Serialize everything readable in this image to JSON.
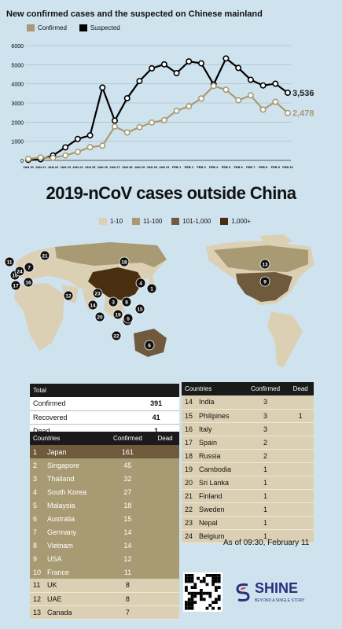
{
  "chart_title": "New confirmed cases and the suspected on Chinese mainland",
  "chart_data": [
    {
      "type": "line",
      "title": "New confirmed cases and the suspected on Chinese mainland",
      "x": [
        "JAN 20",
        "JAN 21",
        "JAN 22",
        "JAN 23",
        "JAN 24",
        "JAN 25",
        "JAN 26",
        "JAN 27",
        "JAN 28",
        "JAN 29",
        "JAN 30",
        "JAN 31",
        "FEB 1",
        "FEB 2",
        "FEB 3",
        "FEB 4",
        "FEB 5",
        "FEB 6",
        "FEB 7",
        "FEB 8",
        "FEB 9",
        "FEB 10"
      ],
      "x_tick_labels": [
        "JAN 20",
        "JAN 21",
        "JAN 22",
        "JAN 23",
        "JAN 24",
        "JAN 25",
        "JAN 26",
        "JAN 27",
        "JAN 28",
        "JAN 29",
        "JAN 30",
        "JAN 31",
        "FEB 1",
        "FEB 2",
        "FEB 3",
        "FEB 4",
        "FEB 5",
        "FEB 6",
        "FEB 7",
        "FEB 8",
        "FEB 9",
        "FEB 10"
      ],
      "x_axis_prefix": "JAN",
      "series": [
        {
          "name": "Confirmed",
          "color": "#a89a72",
          "values": [
            77,
            149,
            131,
            259,
            444,
            688,
            769,
            1771,
            1459,
            1737,
            1982,
            2102,
            2590,
            2829,
            3235,
            3887,
            3694,
            3143,
            3399,
            2656,
            3062,
            2478
          ]
        },
        {
          "name": "Suspected",
          "color": "#000000",
          "values": [
            27,
            60,
            257,
            680,
            1118,
            1309,
            3806,
            2077,
            3248,
            4148,
            4812,
            5019,
            4562,
            5173,
            5072,
            3971,
            5328,
            4833,
            4214,
            3916,
            4008,
            3536
          ]
        }
      ],
      "end_labels": {
        "Confirmed": "2,478",
        "Suspected": "3,536"
      },
      "ylim": [
        0,
        6000
      ],
      "yticks": [
        "0",
        "1000",
        "2000",
        "3000",
        "4000",
        "5000",
        "6000"
      ],
      "grid": true,
      "legend_position": "top-left"
    },
    {
      "type": "table",
      "title": "2019-nCoV cases outside China",
      "legend": [
        {
          "label": "1-10",
          "color": "#dcd0b4"
        },
        {
          "label": "11-100",
          "color": "#a89a72"
        },
        {
          "label": "101-1,000",
          "color": "#6f5a3d"
        },
        {
          "label": "1,000+",
          "color": "#4a2e10"
        }
      ],
      "summary": [
        {
          "label": "Confirmed",
          "value": "391"
        },
        {
          "label": "Recovered",
          "value": "41"
        },
        {
          "label": "Dead",
          "value": "1"
        }
      ],
      "summary_header": "Total",
      "columns": [
        "Countries",
        "Confirmed",
        "Dead"
      ],
      "rows": [
        {
          "n": "1",
          "country": "Japan",
          "confirmed": "161",
          "dead": "",
          "tier": "dark"
        },
        {
          "n": "2",
          "country": "Singapore",
          "confirmed": "45",
          "dead": "",
          "tier": "mid"
        },
        {
          "n": "3",
          "country": "Thailand",
          "confirmed": "32",
          "dead": "",
          "tier": "mid"
        },
        {
          "n": "4",
          "country": "South Korea",
          "confirmed": "27",
          "dead": "",
          "tier": "mid"
        },
        {
          "n": "5",
          "country": "Malaysia",
          "confirmed": "18",
          "dead": "",
          "tier": "mid"
        },
        {
          "n": "6",
          "country": "Australia",
          "confirmed": "15",
          "dead": "",
          "tier": "mid"
        },
        {
          "n": "7",
          "country": "Germany",
          "confirmed": "14",
          "dead": "",
          "tier": "mid"
        },
        {
          "n": "8",
          "country": "Vietnam",
          "confirmed": "14",
          "dead": "",
          "tier": "mid"
        },
        {
          "n": "9",
          "country": "USA",
          "confirmed": "12",
          "dead": "",
          "tier": "mid"
        },
        {
          "n": "10",
          "country": "France",
          "confirmed": "11",
          "dead": "",
          "tier": "mid"
        },
        {
          "n": "11",
          "country": "UK",
          "confirmed": "8",
          "dead": "",
          "tier": "light"
        },
        {
          "n": "12",
          "country": "UAE",
          "confirmed": "8",
          "dead": "",
          "tier": "light"
        },
        {
          "n": "13",
          "country": "Canada",
          "confirmed": "7",
          "dead": "",
          "tier": "light"
        },
        {
          "n": "14",
          "country": "India",
          "confirmed": "3",
          "dead": "",
          "tier": "light"
        },
        {
          "n": "15",
          "country": "Philipines",
          "confirmed": "3",
          "dead": "1",
          "tier": "light"
        },
        {
          "n": "16",
          "country": "Italy",
          "confirmed": "3",
          "dead": "",
          "tier": "light"
        },
        {
          "n": "17",
          "country": "Spain",
          "confirmed": "2",
          "dead": "",
          "tier": "light"
        },
        {
          "n": "18",
          "country": "Russia",
          "confirmed": "2",
          "dead": "",
          "tier": "light"
        },
        {
          "n": "19",
          "country": "Cambodia",
          "confirmed": "1",
          "dead": "",
          "tier": "light"
        },
        {
          "n": "20",
          "country": "Sri Lanka",
          "confirmed": "1",
          "dead": "",
          "tier": "light"
        },
        {
          "n": "21",
          "country": "Finland",
          "confirmed": "1",
          "dead": "",
          "tier": "light"
        },
        {
          "n": "22",
          "country": "Sweden",
          "confirmed": "1",
          "dead": "",
          "tier": "light"
        },
        {
          "n": "23",
          "country": "Nepal",
          "confirmed": "1",
          "dead": "",
          "tier": "light"
        },
        {
          "n": "24",
          "country": "Belgium",
          "confirmed": "1",
          "dead": "",
          "tier": "light"
        }
      ]
    }
  ],
  "map": {
    "china_color": "#4a2e10",
    "markers": [
      "1",
      "2",
      "3",
      "4",
      "5",
      "6",
      "7",
      "8",
      "9",
      "10",
      "11",
      "12",
      "13",
      "14",
      "15",
      "16",
      "17",
      "18",
      "19",
      "20",
      "21",
      "22",
      "23",
      "24"
    ]
  },
  "as_of": "As of 09:30, February 11",
  "brand": {
    "name": "SHINE",
    "tagline": "BEYOND A SINGLE STORY"
  }
}
